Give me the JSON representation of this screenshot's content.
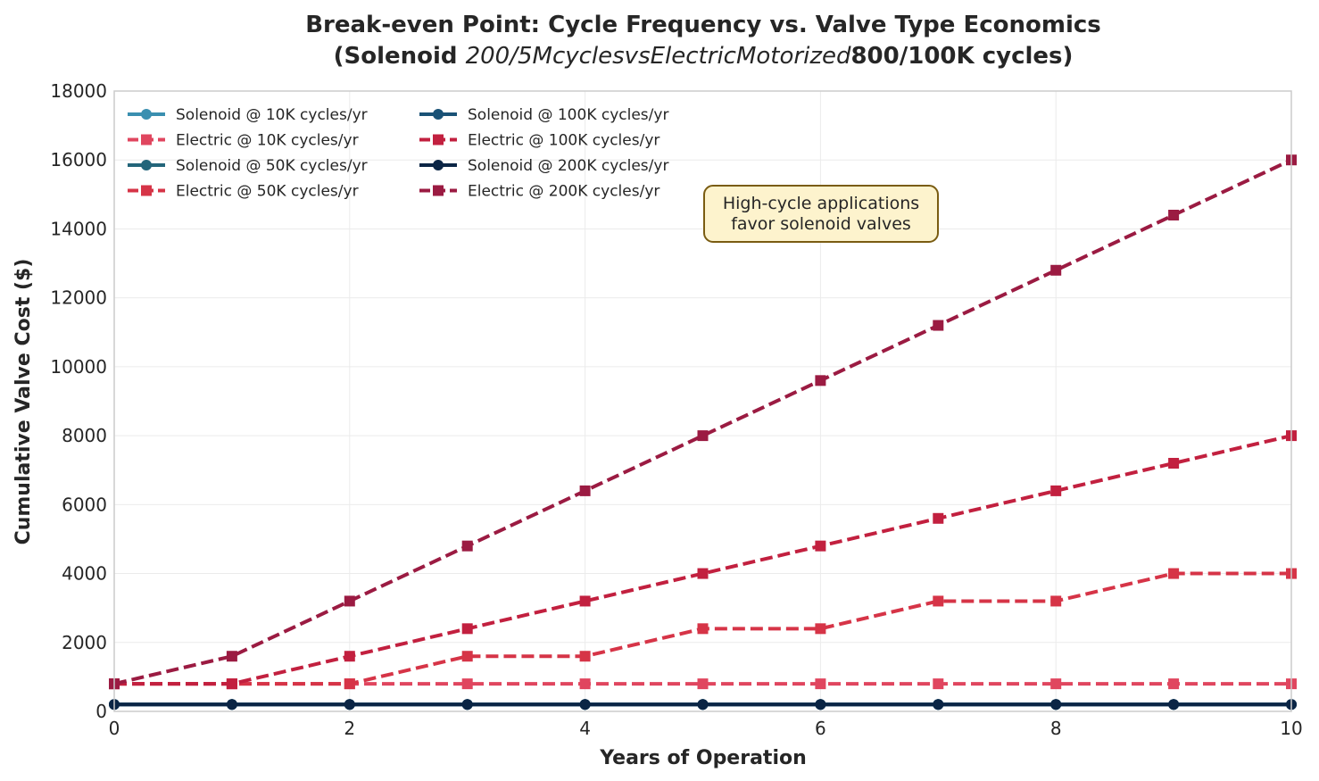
{
  "chart_data": {
    "type": "line",
    "title_line1": "Break-even Point: Cycle Frequency vs. Valve Type Economics",
    "title_line2_a": "(Solenoid ",
    "title_line2_b": "200/5McyclesvsElectricMotorized",
    "title_line2_c": "800/100K cycles)",
    "xlabel": "Years of Operation",
    "ylabel": "Cumulative Valve Cost ($)",
    "xlim": [
      0,
      10
    ],
    "ylim": [
      0,
      18000
    ],
    "xticks": [
      0,
      2,
      4,
      6,
      8,
      10
    ],
    "yticks": [
      0,
      2000,
      4000,
      6000,
      8000,
      10000,
      12000,
      14000,
      16000,
      18000
    ],
    "grid": true,
    "legend_placement": "top-left",
    "x": [
      0,
      1,
      2,
      3,
      4,
      5,
      6,
      7,
      8,
      9,
      10
    ],
    "series": [
      {
        "name": "Solenoid @ 10K cycles/yr",
        "color": "#3a8fb0",
        "style": "solid",
        "marker": "circle",
        "values": [
          200,
          200,
          200,
          200,
          200,
          200,
          200,
          200,
          200,
          200,
          200
        ]
      },
      {
        "name": "Electric @ 10K cycles/yr",
        "color": "#e0465f",
        "style": "dashed",
        "marker": "square",
        "values": [
          800,
          800,
          800,
          800,
          800,
          800,
          800,
          800,
          800,
          800,
          800
        ]
      },
      {
        "name": "Solenoid @ 50K cycles/yr",
        "color": "#23657a",
        "style": "solid",
        "marker": "circle",
        "values": [
          200,
          200,
          200,
          200,
          200,
          200,
          200,
          200,
          200,
          200,
          200
        ]
      },
      {
        "name": "Electric @ 50K cycles/yr",
        "color": "#d63447",
        "style": "dashed",
        "marker": "square",
        "values": [
          800,
          800,
          800,
          1600,
          1600,
          2400,
          2400,
          3200,
          3200,
          4000,
          4000
        ]
      },
      {
        "name": "Solenoid @ 100K cycles/yr",
        "color": "#1a5276",
        "style": "solid",
        "marker": "circle",
        "values": [
          200,
          200,
          200,
          200,
          200,
          200,
          200,
          200,
          200,
          200,
          200
        ]
      },
      {
        "name": "Electric @ 100K cycles/yr",
        "color": "#c2203f",
        "style": "dashed",
        "marker": "square",
        "values": [
          800,
          800,
          1600,
          2400,
          3200,
          4000,
          4800,
          5600,
          6400,
          7200,
          8000
        ]
      },
      {
        "name": "Solenoid @ 200K cycles/yr",
        "color": "#0b2545",
        "style": "solid",
        "marker": "circle",
        "values": [
          200,
          200,
          200,
          200,
          200,
          200,
          200,
          200,
          200,
          200,
          200
        ]
      },
      {
        "name": "Electric @ 200K cycles/yr",
        "color": "#9b1b42",
        "style": "dashed",
        "marker": "square",
        "values": [
          800,
          1600,
          3200,
          4800,
          6400,
          8000,
          9600,
          11200,
          12800,
          14400,
          16000
        ]
      }
    ],
    "annotation": {
      "line1": "High-cycle applications",
      "line2": "favor solenoid valves",
      "x": 6,
      "y": 14500
    }
  }
}
